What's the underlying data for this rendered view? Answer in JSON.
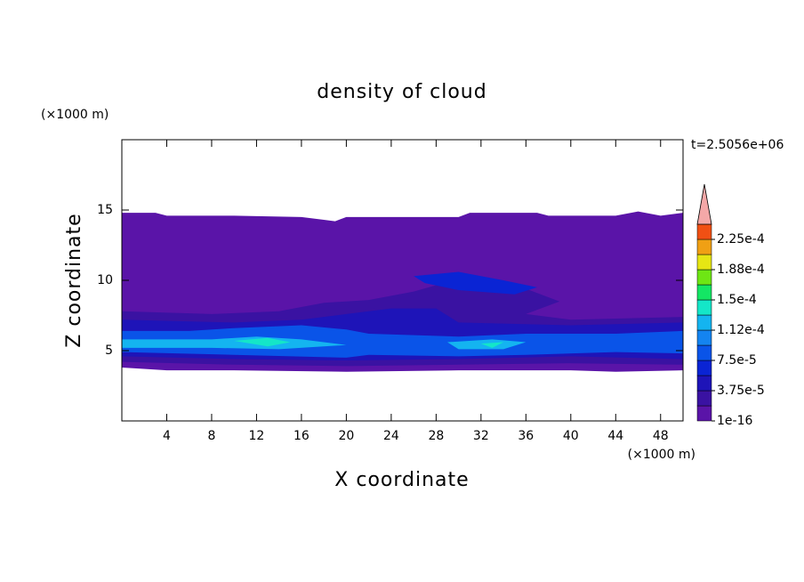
{
  "chart_data": {
    "type": "contour",
    "title": "density of cloud",
    "xlabel": "X coordinate",
    "ylabel": "Z coordinate",
    "xunit": "(×1000 m)",
    "yunit": "(×1000 m)",
    "annotation": "t=2.5056e+06",
    "xlim": [
      0,
      50
    ],
    "ylim": [
      0,
      20
    ],
    "xticks": [
      4,
      8,
      12,
      16,
      20,
      24,
      28,
      32,
      36,
      40,
      44,
      48
    ],
    "yticks": [
      5,
      10,
      15
    ],
    "clim": [
      1e-16,
      0.00024375
    ],
    "cticks": [
      {
        "value": 1e-16,
        "label": "1e-16"
      },
      {
        "value": 3.75e-05,
        "label": "3.75e-5"
      },
      {
        "value": 7.5e-05,
        "label": "7.5e-5"
      },
      {
        "value": 0.0001125,
        "label": "1.12e-4"
      },
      {
        "value": 0.00015,
        "label": "1.5e-4"
      },
      {
        "value": 0.0001875,
        "label": "1.88e-4"
      },
      {
        "value": 0.000225,
        "label": "2.25e-4"
      }
    ],
    "colors": [
      "#5a14a8",
      "#3a12a2",
      "#1e14b8",
      "#0a24d4",
      "#0a54e8",
      "#1484f0",
      "#14b4f0",
      "#14e6c8",
      "#14e664",
      "#6ee614",
      "#e6e614",
      "#f0a014",
      "#f05014"
    ],
    "extend_color": "#f4a8a8",
    "regions": [
      {
        "level": 0,
        "x": [
          0,
          3,
          4,
          10,
          16,
          18,
          19,
          20,
          24,
          30,
          31,
          37,
          38,
          44,
          46,
          48,
          50,
          50,
          44,
          40,
          30,
          20,
          10,
          4,
          0
        ],
        "z": [
          14.8,
          14.8,
          14.6,
          14.6,
          14.5,
          14.3,
          14.2,
          14.5,
          14.5,
          14.5,
          14.8,
          14.8,
          14.6,
          14.6,
          14.9,
          14.6,
          14.8,
          3.6,
          3.5,
          3.6,
          3.6,
          3.5,
          3.6,
          3.6,
          3.8
        ]
      },
      {
        "level": 1,
        "x": [
          0,
          8,
          14,
          18,
          22,
          26,
          30,
          34,
          39,
          36,
          40,
          50,
          50,
          40,
          30,
          20,
          10,
          0
        ],
        "z": [
          7.8,
          7.6,
          7.8,
          8.4,
          8.6,
          9.2,
          10.1,
          10,
          8.5,
          7.6,
          7.2,
          7.4,
          4,
          4.1,
          4,
          3.9,
          4,
          4.2
        ]
      },
      {
        "level": 2,
        "x": [
          0,
          10,
          16,
          20,
          24,
          28,
          30,
          40,
          50,
          50,
          40,
          30,
          20,
          10,
          0
        ],
        "z": [
          7.2,
          7,
          7.2,
          7.6,
          8,
          8,
          7,
          6.8,
          7,
          4.4,
          4.6,
          4.4,
          4.3,
          4.4,
          4.6
        ]
      },
      {
        "level": 3,
        "x": [
          26,
          30,
          34,
          37,
          35,
          30,
          27
        ],
        "z": [
          10.3,
          10.6,
          10,
          9.5,
          9,
          9.3,
          9.8
        ]
      },
      {
        "level": 4,
        "x": [
          0,
          6,
          10,
          16,
          20,
          22,
          30,
          36,
          44,
          50,
          50,
          44,
          36,
          30,
          22,
          20,
          10,
          0
        ],
        "z": [
          6.4,
          6.4,
          6.6,
          6.8,
          6.5,
          6.2,
          6,
          6.2,
          6.2,
          6.4,
          4.8,
          4.9,
          4.7,
          4.6,
          4.7,
          4.5,
          4.7,
          4.9
        ]
      },
      {
        "level": 6,
        "x": [
          0,
          8,
          12,
          16,
          20,
          14,
          8,
          0
        ],
        "z": [
          5.8,
          5.8,
          6,
          5.8,
          5.4,
          5.1,
          5.2,
          5.2
        ]
      },
      {
        "level": 6,
        "x": [
          29,
          33,
          36,
          34,
          30
        ],
        "z": [
          5.6,
          5.8,
          5.6,
          5.1,
          5.1
        ]
      },
      {
        "level": 7,
        "x": [
          10,
          13,
          15,
          13
        ],
        "z": [
          5.7,
          5.9,
          5.6,
          5.3
        ]
      },
      {
        "level": 7,
        "x": [
          32,
          34,
          33
        ],
        "z": [
          5.5,
          5.6,
          5.2
        ]
      }
    ]
  }
}
